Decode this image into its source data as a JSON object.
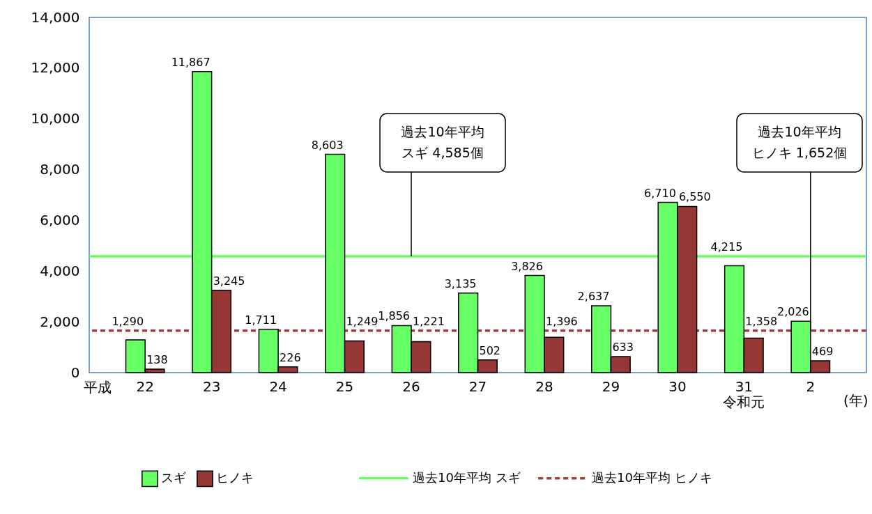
{
  "chart_data": {
    "type": "bar",
    "xlabel": "(年)",
    "categories": [
      "22",
      "23",
      "24",
      "25",
      "26",
      "27",
      "28",
      "29",
      "30",
      "31\n令和元",
      "2"
    ],
    "series": [
      {
        "name": "スギ",
        "color": "#66ff66",
        "values": [
          1290,
          11867,
          1711,
          8603,
          1856,
          3135,
          3826,
          2637,
          6710,
          4215,
          2026
        ],
        "value_labels": [
          "1,290",
          "11,867",
          "1,711",
          "8,603",
          "1,856",
          "3,135",
          "3,826",
          "2,637",
          "6,710",
          "4,215",
          "2,026"
        ]
      },
      {
        "name": "ヒノキ",
        "color": "#953735",
        "values": [
          138,
          3245,
          226,
          1249,
          1221,
          502,
          1396,
          633,
          6550,
          1358,
          469
        ],
        "value_labels": [
          "138",
          "3,245",
          "226",
          "1,249",
          "1,221",
          "502",
          "1,396",
          "633",
          "6,550",
          "1,358",
          "469"
        ]
      }
    ],
    "ylim": [
      0,
      14000
    ],
    "yticks": [
      0,
      {
        "value": 2000,
        "label": "2,000"
      },
      {
        "value": 4000,
        "label": "4,000"
      },
      {
        "value": 6000,
        "label": "6,000"
      },
      {
        "value": 8000,
        "label": "8,000"
      },
      {
        "value": 10000,
        "label": "10,000"
      },
      {
        "value": 12000,
        "label": "12,000"
      },
      {
        "value": 14000,
        "label": "14,000"
      }
    ],
    "grid": false,
    "legend": "bottom",
    "ref_lines": [
      {
        "axis": "y",
        "value": 4585,
        "label": "過去10年平均  スギ",
        "color": "#66ff66"
      },
      {
        "axis": "y",
        "value": 1652,
        "label": "過去10年平均 ヒノキ",
        "color": "#a0413c",
        "line_style": "dashed"
      }
    ],
    "annotations": [
      "過去10年平均",
      {
        "text": "スギ  4,585個",
        "x": "26",
        "y": 4585
      },
      "過去10年平均",
      {
        "text": "ヒノキ 1,652個",
        "x": "2",
        "y": 1652
      },
      "平成"
    ]
  }
}
